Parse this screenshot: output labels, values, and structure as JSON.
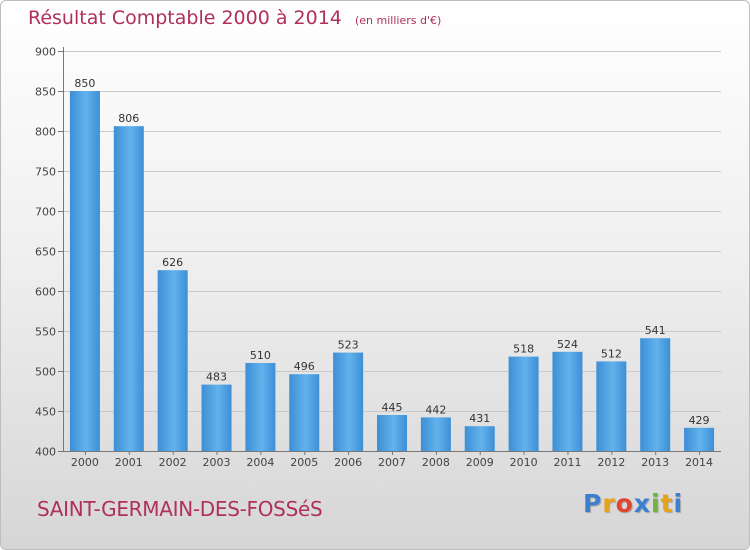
{
  "header": {
    "title": "Résultat Comptable 2000 à 2014",
    "subtitle": "(en milliers d'€)"
  },
  "footer": {
    "city": "SAINT-GERMAIN-DES-FOSSéS",
    "logo_letters": [
      "P",
      "r",
      "o",
      "x",
      "i",
      "t",
      "i"
    ],
    "logo_colors": [
      "#3b7fd0",
      "#e8a21a",
      "#e0452f",
      "#3b7fd0",
      "#6cb33f",
      "#e8a21a",
      "#3b7fd0"
    ]
  },
  "chart_data": {
    "type": "bar",
    "title": "Résultat Comptable 2000 à 2014",
    "subtitle": "(en milliers d'€)",
    "xlabel": "",
    "ylabel": "",
    "categories": [
      "2000",
      "2001",
      "2002",
      "2003",
      "2004",
      "2005",
      "2006",
      "2007",
      "2008",
      "2009",
      "2010",
      "2011",
      "2012",
      "2013",
      "2014"
    ],
    "values": [
      850,
      806,
      626,
      483,
      510,
      496,
      523,
      445,
      442,
      431,
      518,
      524,
      512,
      541,
      429
    ],
    "ylim": [
      400,
      900
    ],
    "yticks": [
      400,
      450,
      500,
      550,
      600,
      650,
      700,
      750,
      800,
      850,
      900
    ],
    "grid": true,
    "bar_color": "#3d8fd6",
    "bar_color_light": "#62b2ec"
  }
}
